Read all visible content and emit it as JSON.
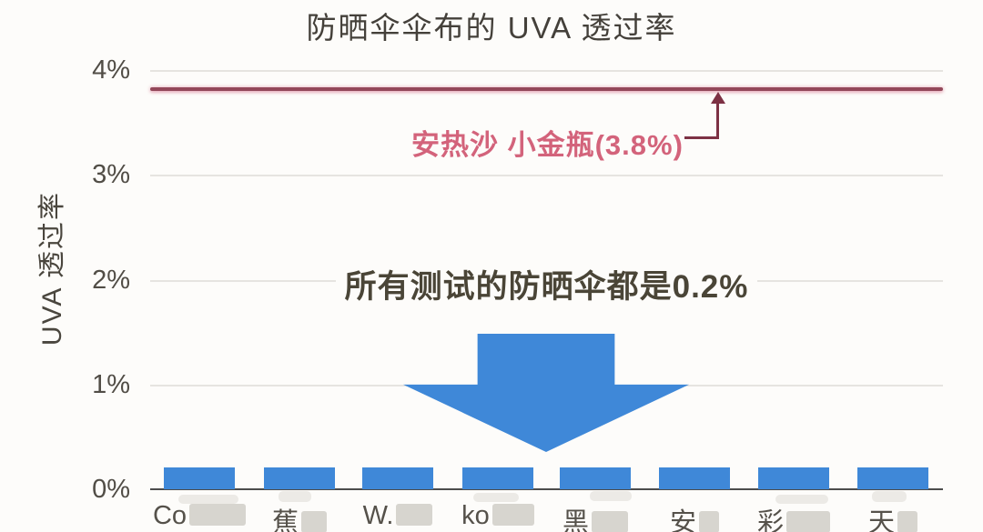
{
  "title": "防晒伞伞布的 UVA 透过率",
  "y_axis": {
    "label": "UVA 透过率",
    "ticks": [
      "4%",
      "3%",
      "2%",
      "1%",
      "0%"
    ]
  },
  "reference": {
    "label": "安热沙 小金瓶(3.8%)",
    "value_percent": 3.8
  },
  "callout": "所有测试的防晒伞都是0.2%",
  "x_labels": [
    "Co",
    "蕉",
    "W.",
    "ko",
    "黑",
    "安",
    "彩",
    "天"
  ],
  "x_labels_note": "labels partially obscured by gray blur patches",
  "chart_data": {
    "type": "bar",
    "title": "防晒伞伞布的 UVA 透过率",
    "ylabel": "UVA 透过率",
    "ylim": [
      0,
      4
    ],
    "y_tick_labels": [
      "0%",
      "1%",
      "2%",
      "3%",
      "4%"
    ],
    "grid": true,
    "categories": [
      "Co…",
      "蕉…",
      "W.…",
      "ko…",
      "黑…",
      "安…",
      "彩…",
      "天…"
    ],
    "values": [
      0.2,
      0.2,
      0.2,
      0.2,
      0.2,
      0.2,
      0.2,
      0.2
    ],
    "annotations": [
      {
        "type": "reference_line",
        "value": 3.8,
        "text": "安热沙 小金瓶(3.8%)"
      },
      {
        "type": "text_with_down_arrow",
        "text": "所有测试的防晒伞都是0.2%",
        "applies_to": "all bars"
      }
    ]
  },
  "colors": {
    "bar_blue": "#3f88d8",
    "reference_line_red": "#93485a",
    "annotation_pink": "#d3637b",
    "annotation_arrow_dark_red": "#7d3144",
    "grid_gray": "#e6e4e0",
    "axis_dark": "#4c4c4c",
    "text_dark": "#4a463e",
    "background": "#fdfcfa"
  }
}
